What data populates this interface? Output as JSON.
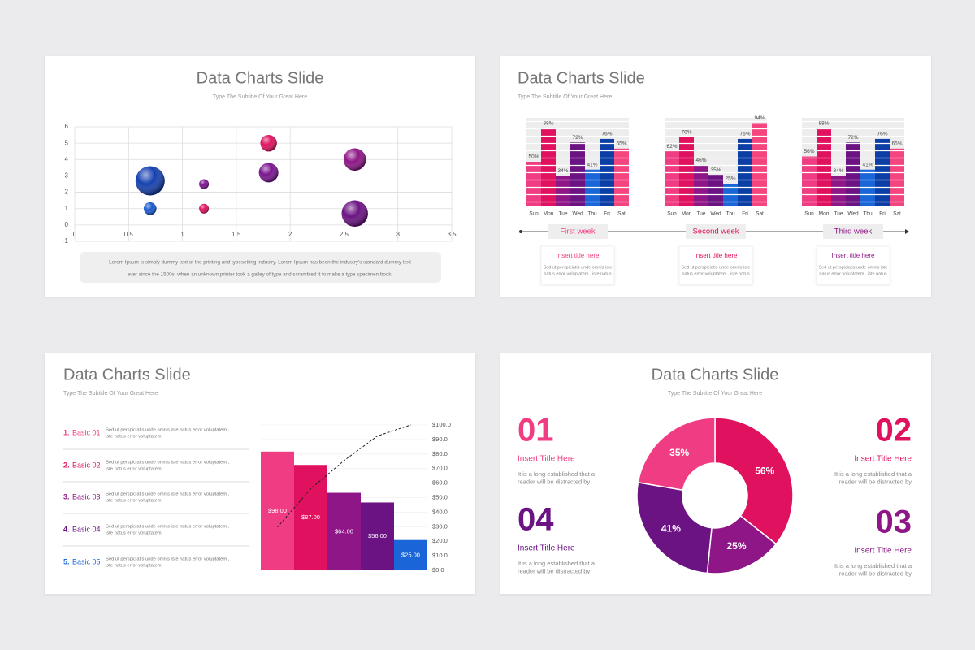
{
  "chart_data": [
    {
      "type": "bubble",
      "title": "Data Charts Slide",
      "subtitle": "Type The Subtitle Of Your Great Here",
      "x": [
        0.7,
        0.7,
        1.2,
        1.2,
        1.8,
        1.8,
        2.6,
        2.6
      ],
      "values": [
        2.7,
        1,
        2.5,
        1,
        5,
        3.2,
        4,
        0.7
      ],
      "sizes": [
        3,
        1.3,
        1,
        1,
        1.7,
        2,
        2.3,
        2.7
      ],
      "colors": [
        "#1540b0",
        "#1a5ad0",
        "#7a1590",
        "#e0115f",
        "#e0115f",
        "#7a1590",
        "#8e1686",
        "#6b1383"
      ],
      "xlim": [
        0,
        3.5
      ],
      "ylim": [
        -1,
        6
      ],
      "xticks": [
        0,
        0.5,
        1,
        1.5,
        2,
        2.5,
        3,
        3.5
      ],
      "yticks": [
        -1,
        0,
        1,
        2,
        3,
        4,
        5,
        6
      ],
      "grid": true,
      "note": [
        "Lorem Ipsum is simply dummy text of the printing and typesetting industry. Lorem Ipsum has been the industry's standard dummy text",
        "ever since the 1500s, when an unknown printer took a galley of type and scrambled it to make a type specimen book."
      ]
    },
    {
      "type": "bar",
      "title": "Data Charts Slide",
      "subtitle": "Type The Subtitle Of Your Great Here",
      "categories": [
        "Sun",
        "Mon",
        "Tue",
        "Wed",
        "Thu",
        "Fri",
        "Sat"
      ],
      "colors": [
        "#f03c82",
        "#e0115f",
        "#8e1686",
        "#6b1383",
        "#1a66d9",
        "#0c3fa6",
        "#f5457f"
      ],
      "ylim": [
        0,
        100
      ],
      "weeks": [
        {
          "name": "First week",
          "color": "#f03c82",
          "values": [
            50,
            88,
            34,
            72,
            41,
            76,
            65
          ],
          "value_labels": [
            "50%",
            "88%",
            "34%",
            "72%",
            "41%",
            "76%",
            "65%"
          ],
          "title": "Insert title here",
          "text": [
            "Sed ut perspiciatis unde omnis iste",
            "natus error voluptatem , iste natus"
          ]
        },
        {
          "name": "Second week",
          "color": "#e0115f",
          "values": [
            62,
            78,
            46,
            35,
            25,
            76,
            94
          ],
          "value_labels": [
            "62%",
            "78%",
            "46%",
            "35%",
            "25%",
            "76%",
            "94%"
          ],
          "title": "Insert title here",
          "text": [
            "Sed ut perspiciatis unde omnis iste",
            "natus error voluptatem , iste natus"
          ]
        },
        {
          "name": "Third week",
          "color": "#8e1686",
          "values": [
            56,
            88,
            34,
            72,
            41,
            76,
            65
          ],
          "value_labels": [
            "56%",
            "88%",
            "34%",
            "72%",
            "41%",
            "76%",
            "65%"
          ],
          "title": "Insert title here",
          "text": [
            "Sed ut perspiciatis unde omnis iste",
            "natus error voluptatem , iste natus"
          ]
        }
      ]
    },
    {
      "type": "pareto",
      "title": "Data Charts Slide",
      "subtitle": "Type The Subtitle Of Your Great Here",
      "numbers": [
        "1.",
        "2.",
        "3.",
        "4.",
        "5."
      ],
      "categories": [
        "Basic 01",
        "Basic 02",
        "Basic 03",
        "Basic 04",
        "Basic 05"
      ],
      "descriptions": [
        [
          "Sed ut perspiciatis unde omnis iste natus error voluptatem ,",
          "iste natus error voluptatem."
        ],
        [
          "Sed ut perspiciatis unde omnis iste natus error voluptatem ,",
          "iste natus error voluptatem."
        ],
        [
          "Sed ut perspiciatis unde omnis iste natus error voluptatem ,",
          "iste natus error voluptatem."
        ],
        [
          "Sed ut perspiciatis unde omnis iste natus error voluptatem ,",
          "iste natus error voluptatem."
        ],
        [
          "Sed ut perspiciatis unde omnis iste natus error voluptatem ,",
          "iste natus error voluptatem."
        ]
      ],
      "series": [
        {
          "values": [
            98,
            87,
            64,
            56,
            25
          ],
          "value_labels": [
            "$98.00",
            "$87.00",
            "$64.00",
            "$56.00",
            "$25.00"
          ],
          "colors": [
            "#f03c82",
            "#e0115f",
            "#8e1686",
            "#6b1383",
            "#1a66d9"
          ]
        },
        {
          "axis": "y2",
          "values": [
            29.7,
            56.1,
            75.5,
            92.4,
            100
          ],
          "color": "#222222"
        }
      ],
      "ylim": [
        0,
        120
      ],
      "y2lim": [
        0,
        100
      ],
      "y2ticks": [
        {
          "value": 0,
          "label": "$0.0"
        },
        {
          "value": 10,
          "label": "$10.0"
        },
        {
          "value": 20,
          "label": "$20.0"
        },
        {
          "value": 30,
          "label": "$30.0"
        },
        {
          "value": 40,
          "label": "$40.0"
        },
        {
          "value": 50,
          "label": "$50.0"
        },
        {
          "value": 60,
          "label": "$60.0"
        },
        {
          "value": 70,
          "label": "$70.0"
        },
        {
          "value": 80,
          "label": "$80.0"
        },
        {
          "value": 90,
          "label": "$90.0"
        },
        {
          "value": 100,
          "label": "$100.0"
        }
      ]
    },
    {
      "type": "donut",
      "title": "Data Charts Slide",
      "subtitle": "Type The Subtitle Of Your Great Here",
      "values": [
        56,
        25,
        41,
        35
      ],
      "value_labels": [
        "56%",
        "25%",
        "41%",
        "35%"
      ],
      "colors": [
        "#e0115f",
        "#8e1686",
        "#6b1383",
        "#f03c82"
      ],
      "items": [
        {
          "number": "01",
          "title": "Insert Title Here",
          "text": [
            "It is a long established that a",
            "reader will be distracted by"
          ],
          "color": "#f03c82"
        },
        {
          "number": "02",
          "title": "Insert Title Here",
          "text": [
            "It is a long established that a",
            "reader will be distracted by"
          ],
          "color": "#e0115f"
        },
        {
          "number": "03",
          "title": "Insert Title Here",
          "text": [
            "It is a long established that a",
            "reader will be distracted by"
          ],
          "color": "#8e1686"
        },
        {
          "number": "04",
          "title": "Insert Title Here",
          "text": [
            "It is a long established that a",
            "reader will be distracted by"
          ],
          "color": "#6b1383"
        }
      ]
    }
  ]
}
